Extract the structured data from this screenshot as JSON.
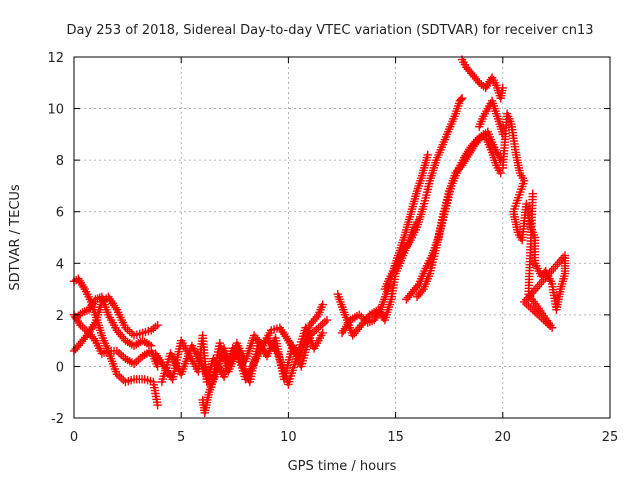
{
  "chart_data": {
    "type": "scatter",
    "title": "Day 253 of 2018, Sidereal Day-to-day VTEC variation (SDTVAR) for receiver cn13",
    "xlabel": "GPS time / hours",
    "ylabel": "SDTVAR / TECUs",
    "xlim": [
      0,
      25
    ],
    "ylim": [
      -2,
      12
    ],
    "grid": true,
    "marker": "plus",
    "colors": {
      "series": "#ff0000",
      "grid": "#a0a0a0",
      "axis": "#000000"
    },
    "xticks": [
      0,
      5,
      10,
      15,
      20,
      25
    ],
    "xtick_labels": [
      "0",
      "5",
      "10",
      "15",
      "20",
      "25"
    ],
    "yticks": [
      -2,
      0,
      2,
      4,
      6,
      8,
      10,
      12
    ],
    "ytick_labels": [
      "-2",
      "0",
      "2",
      "4",
      "6",
      "8",
      "10",
      "12"
    ],
    "series": [
      {
        "name": "SDTVAR",
        "tracks": [
          [
            [
              0.0,
              3.3
            ],
            [
              0.2,
              3.4
            ],
            [
              0.5,
              3.0
            ],
            [
              0.8,
              2.5
            ],
            [
              1.0,
              2.0
            ],
            [
              1.3,
              1.2
            ],
            [
              1.6,
              0.6
            ],
            [
              2.0,
              -0.3
            ],
            [
              2.4,
              -0.6
            ],
            [
              2.8,
              -0.5
            ],
            [
              3.3,
              -0.5
            ],
            [
              3.7,
              -0.6
            ],
            [
              3.9,
              -1.5
            ]
          ],
          [
            [
              0.0,
              2.0
            ],
            [
              0.3,
              1.6
            ],
            [
              0.7,
              1.3
            ],
            [
              1.0,
              1.0
            ],
            [
              1.3,
              0.5
            ],
            [
              1.6,
              0.6
            ],
            [
              2.0,
              0.6
            ],
            [
              2.4,
              0.3
            ],
            [
              2.8,
              0.1
            ],
            [
              3.2,
              0.4
            ],
            [
              3.6,
              0.6
            ],
            [
              3.9,
              0.0
            ]
          ],
          [
            [
              0.0,
              0.6
            ],
            [
              0.3,
              0.9
            ],
            [
              0.6,
              1.2
            ],
            [
              1.0,
              1.7
            ],
            [
              1.3,
              2.5
            ],
            [
              1.6,
              2.7
            ],
            [
              2.0,
              2.2
            ],
            [
              2.4,
              1.5
            ],
            [
              2.8,
              1.2
            ],
            [
              3.2,
              1.3
            ],
            [
              3.6,
              1.4
            ],
            [
              3.9,
              1.6
            ]
          ],
          [
            [
              0.1,
              1.9
            ],
            [
              0.4,
              2.1
            ],
            [
              0.7,
              2.2
            ],
            [
              1.0,
              2.6
            ],
            [
              1.3,
              2.7
            ],
            [
              1.6,
              2.0
            ],
            [
              2.0,
              1.4
            ],
            [
              2.4,
              1.0
            ],
            [
              2.8,
              0.8
            ],
            [
              3.2,
              1.0
            ],
            [
              3.6,
              0.8
            ]
          ],
          [
            [
              3.8,
              0.5
            ],
            [
              4.2,
              0.0
            ],
            [
              4.6,
              -0.5
            ],
            [
              5.0,
              1.0
            ],
            [
              5.4,
              0.4
            ],
            [
              5.8,
              -0.2
            ],
            [
              6.0,
              1.2
            ],
            [
              6.2,
              -0.6
            ],
            [
              6.5,
              0.3
            ],
            [
              7.0,
              -0.4
            ],
            [
              7.4,
              0.7
            ],
            [
              7.8,
              0.2
            ],
            [
              8.2,
              -0.6
            ],
            [
              8.6,
              0.9
            ],
            [
              9.0,
              0.4
            ],
            [
              9.4,
              1.1
            ],
            [
              9.8,
              -0.5
            ],
            [
              10.2,
              0.8
            ],
            [
              10.6,
              0.0
            ],
            [
              11.0,
              1.2
            ],
            [
              11.4,
              1.5
            ],
            [
              11.8,
              1.8
            ]
          ],
          [
            [
              4.1,
              -0.6
            ],
            [
              4.5,
              0.5
            ],
            [
              5.0,
              -0.3
            ],
            [
              5.5,
              0.8
            ],
            [
              6.0,
              0.0
            ],
            [
              6.4,
              -0.8
            ],
            [
              6.8,
              0.9
            ],
            [
              7.2,
              -0.2
            ],
            [
              7.6,
              0.6
            ],
            [
              8.0,
              -0.5
            ],
            [
              8.5,
              0.3
            ],
            [
              9.0,
              1.1
            ],
            [
              9.5,
              0.5
            ],
            [
              10.0,
              -0.7
            ],
            [
              10.4,
              0.4
            ],
            [
              10.8,
              1.5
            ],
            [
              11.2,
              0.7
            ],
            [
              11.6,
              1.3
            ]
          ],
          [
            [
              6.0,
              -1.3
            ],
            [
              6.1,
              -1.8
            ],
            [
              6.3,
              -1.0
            ],
            [
              6.6,
              -0.3
            ],
            [
              7.0,
              0.7
            ],
            [
              7.3,
              0.0
            ],
            [
              7.6,
              0.9
            ],
            [
              8.0,
              0.2
            ],
            [
              8.4,
              1.2
            ],
            [
              8.8,
              0.8
            ],
            [
              9.2,
              1.4
            ],
            [
              9.6,
              1.5
            ],
            [
              10.0,
              1.0
            ],
            [
              10.5,
              0.3
            ],
            [
              11.0,
              1.6
            ],
            [
              11.4,
              2.0
            ],
            [
              11.6,
              2.4
            ]
          ],
          [
            [
              12.3,
              2.8
            ],
            [
              12.6,
              2.1
            ],
            [
              13.0,
              1.2
            ],
            [
              13.4,
              1.6
            ],
            [
              13.8,
              2.0
            ],
            [
              14.2,
              2.2
            ],
            [
              14.5,
              1.8
            ],
            [
              14.8,
              2.6
            ],
            [
              15.0,
              3.6
            ],
            [
              15.3,
              4.2
            ],
            [
              15.6,
              4.8
            ],
            [
              15.8,
              5.3
            ],
            [
              16.0,
              5.6
            ]
          ],
          [
            [
              12.5,
              1.3
            ],
            [
              12.9,
              1.8
            ],
            [
              13.3,
              2.0
            ],
            [
              13.7,
              1.7
            ],
            [
              14.0,
              1.8
            ],
            [
              14.3,
              2.2
            ],
            [
              14.6,
              2.9
            ],
            [
              14.8,
              3.5
            ],
            [
              15.0,
              4.0
            ],
            [
              15.2,
              4.5
            ],
            [
              15.4,
              5.0
            ],
            [
              15.6,
              5.6
            ],
            [
              15.8,
              6.2
            ],
            [
              16.0,
              6.8
            ],
            [
              16.2,
              7.3
            ],
            [
              16.4,
              7.9
            ],
            [
              16.5,
              8.2
            ]
          ],
          [
            [
              14.5,
              3.0
            ],
            [
              14.7,
              3.4
            ],
            [
              14.9,
              3.7
            ],
            [
              15.1,
              4.1
            ],
            [
              15.4,
              4.5
            ],
            [
              15.7,
              4.9
            ],
            [
              16.0,
              5.4
            ],
            [
              16.3,
              6.2
            ],
            [
              16.6,
              7.2
            ],
            [
              16.9,
              8.0
            ],
            [
              17.2,
              8.6
            ],
            [
              17.5,
              9.2
            ],
            [
              17.8,
              9.8
            ],
            [
              18.0,
              10.3
            ],
            [
              18.1,
              10.4
            ]
          ],
          [
            [
              15.5,
              2.6
            ],
            [
              15.8,
              2.9
            ],
            [
              16.1,
              3.2
            ],
            [
              16.4,
              3.8
            ],
            [
              16.7,
              4.3
            ],
            [
              17.0,
              5.0
            ],
            [
              17.3,
              6.0
            ],
            [
              17.6,
              7.0
            ],
            [
              17.9,
              7.6
            ],
            [
              18.2,
              8.1
            ],
            [
              18.5,
              8.5
            ],
            [
              18.8,
              8.8
            ],
            [
              19.1,
              9.0
            ],
            [
              19.3,
              8.7
            ],
            [
              19.5,
              8.3
            ],
            [
              19.7,
              7.8
            ],
            [
              19.9,
              7.5
            ]
          ],
          [
            [
              16.0,
              2.7
            ],
            [
              16.3,
              3.0
            ],
            [
              16.6,
              3.6
            ],
            [
              16.9,
              4.6
            ],
            [
              17.2,
              5.8
            ],
            [
              17.5,
              6.8
            ],
            [
              17.8,
              7.5
            ],
            [
              18.1,
              7.8
            ],
            [
              18.4,
              8.2
            ],
            [
              18.7,
              8.6
            ],
            [
              19.0,
              8.9
            ],
            [
              19.3,
              9.1
            ],
            [
              19.6,
              8.5
            ],
            [
              19.9,
              8.0
            ]
          ],
          [
            [
              18.1,
              11.9
            ],
            [
              18.3,
              11.6
            ],
            [
              18.6,
              11.3
            ],
            [
              18.9,
              11.0
            ],
            [
              19.2,
              10.8
            ],
            [
              19.5,
              11.2
            ],
            [
              19.7,
              10.9
            ],
            [
              19.9,
              10.4
            ],
            [
              20.0,
              10.8
            ]
          ],
          [
            [
              18.9,
              9.3
            ],
            [
              19.1,
              9.7
            ],
            [
              19.3,
              10.0
            ],
            [
              19.5,
              10.3
            ],
            [
              19.7,
              9.8
            ],
            [
              19.9,
              9.3
            ],
            [
              20.0,
              9.0
            ]
          ],
          [
            [
              20.0,
              7.7
            ],
            [
              20.2,
              9.8
            ],
            [
              20.4,
              9.4
            ],
            [
              20.6,
              8.3
            ],
            [
              20.8,
              7.5
            ],
            [
              21.0,
              7.2
            ],
            [
              20.5,
              6.0
            ],
            [
              20.7,
              5.2
            ],
            [
              20.9,
              4.9
            ],
            [
              21.1,
              6.3
            ],
            [
              21.3,
              5.4
            ],
            [
              21.5,
              5.0
            ],
            [
              21.5,
              4.0
            ],
            [
              21.8,
              3.5
            ],
            [
              22.0,
              3.7
            ],
            [
              22.3,
              3.2
            ],
            [
              22.5,
              2.2
            ],
            [
              22.7,
              3.0
            ],
            [
              22.9,
              3.6
            ],
            [
              22.9,
              4.3
            ],
            [
              21.0,
              2.5
            ],
            [
              22.3,
              1.5
            ],
            [
              21.2,
              2.8
            ],
            [
              21.4,
              6.7
            ]
          ]
        ]
      }
    ]
  }
}
